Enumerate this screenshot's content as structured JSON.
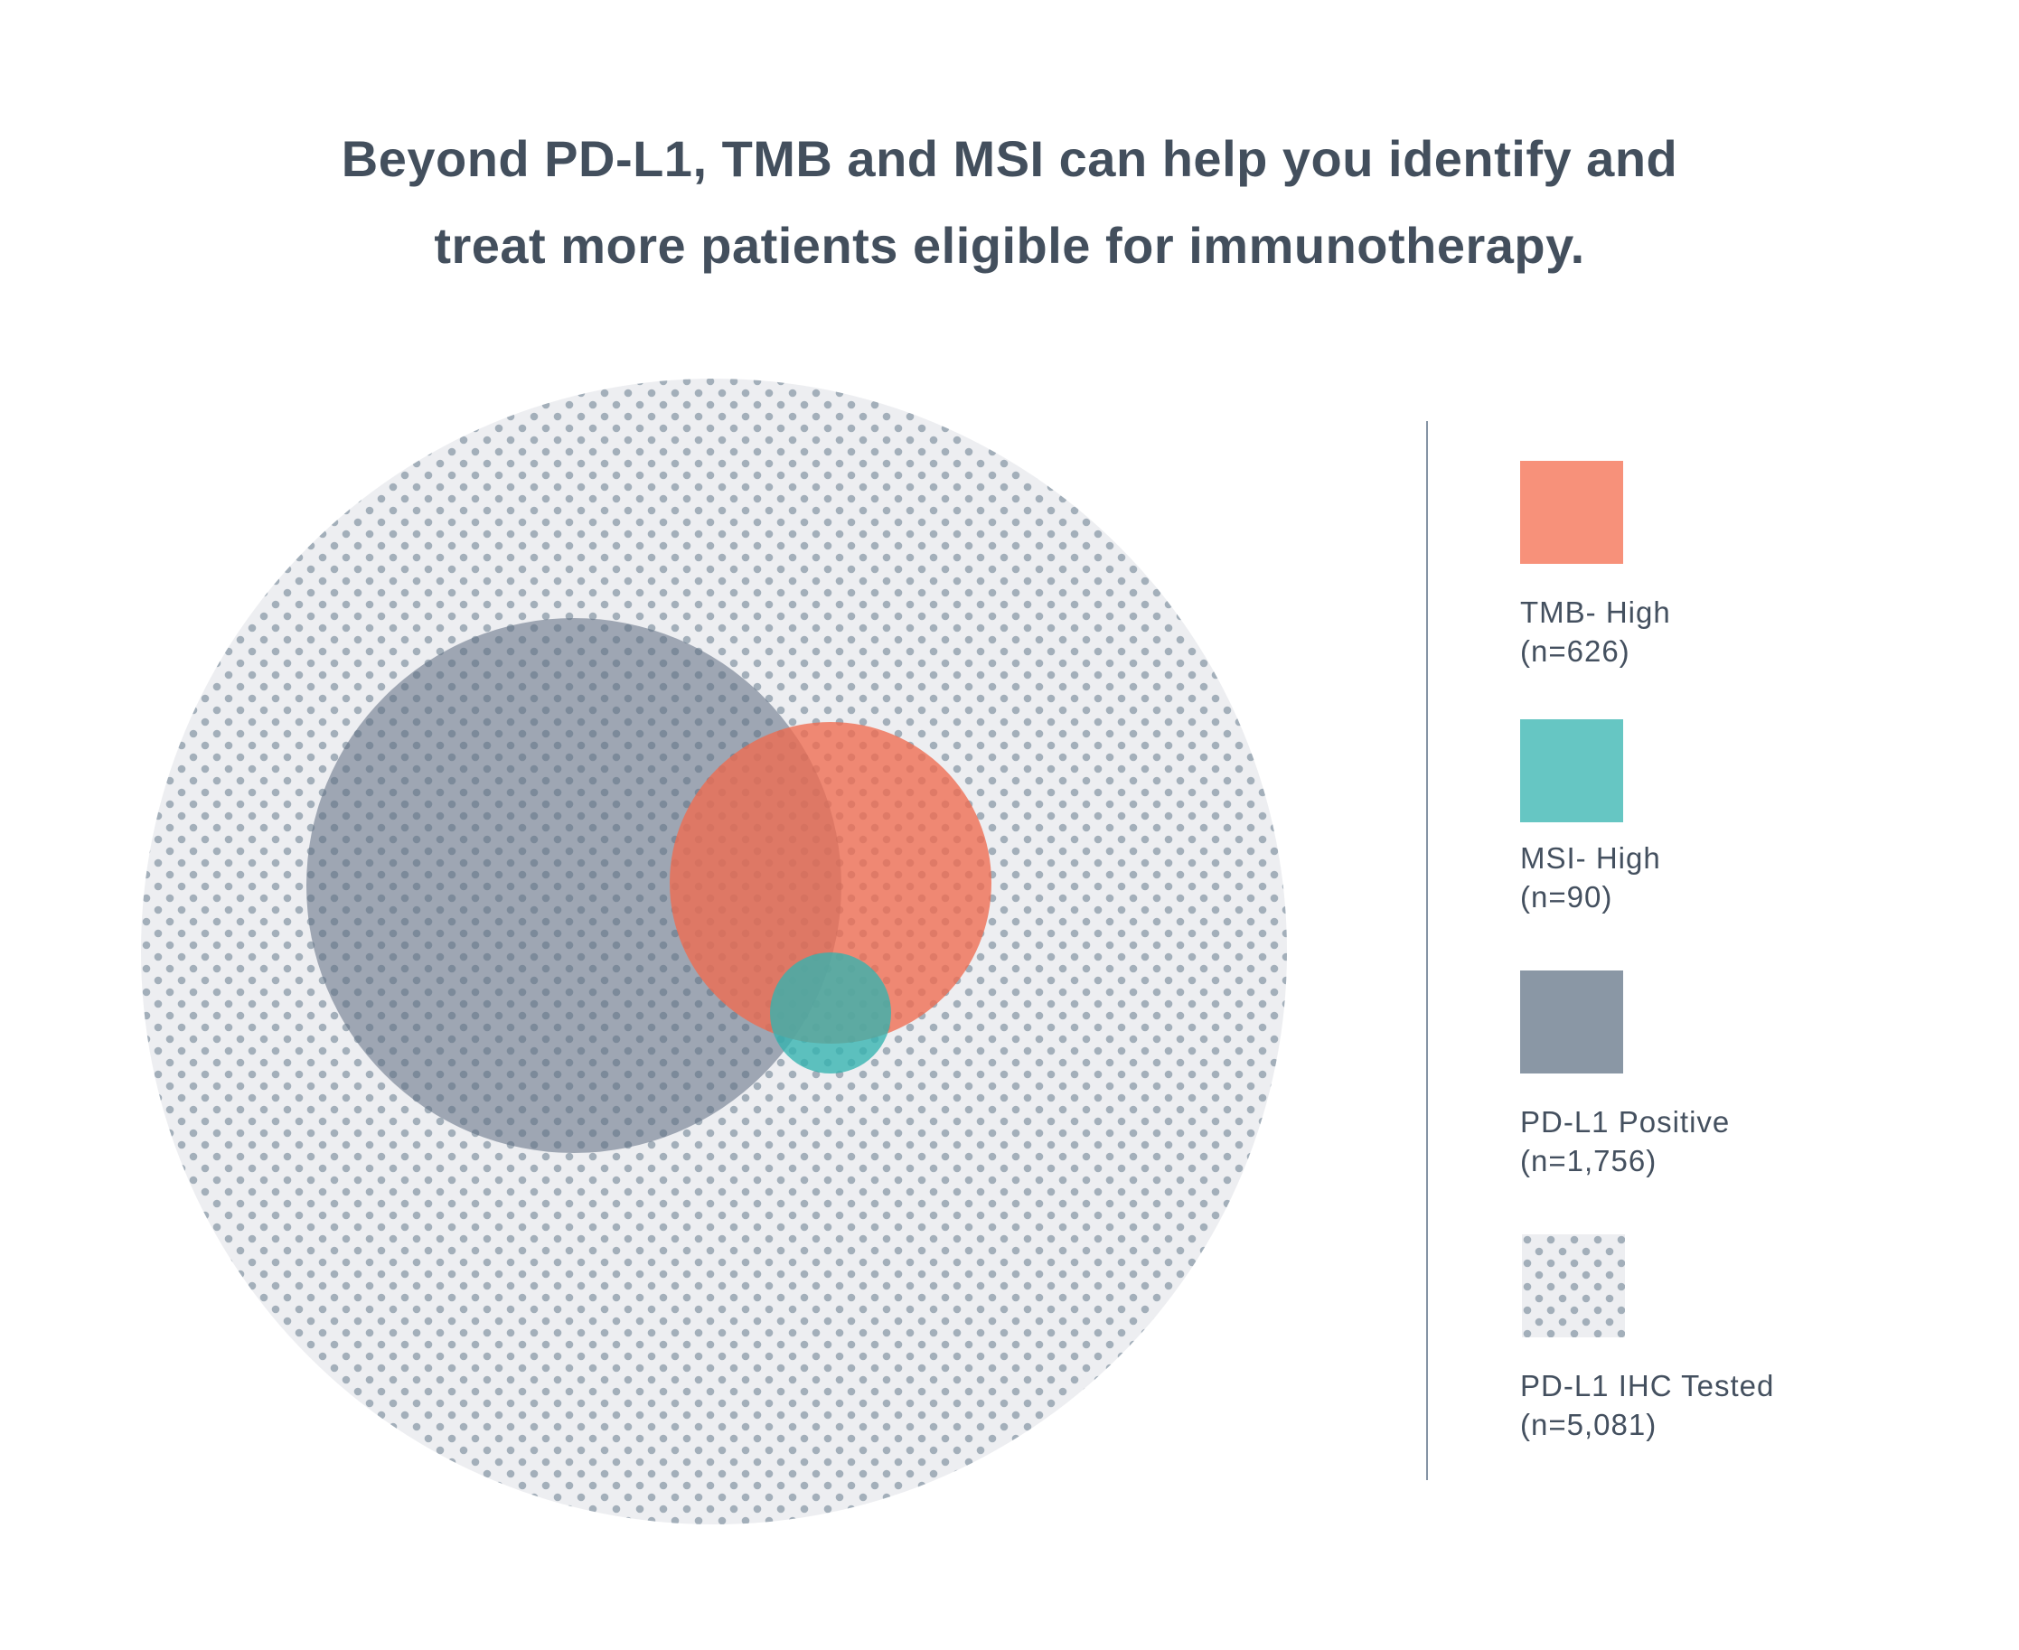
{
  "title": {
    "line1": "Beyond PD-L1, TMB and MSI can help you identify and",
    "line2": "treat more patients eligible for immunotherapy."
  },
  "colors": {
    "tmb_high": "#f7917a",
    "msi_high": "#66c6c3",
    "pdl1_positive": "#8a97a5",
    "tested_background": "#edeef1",
    "tested_dots": "#a3afba",
    "text": "#44505f"
  },
  "legend": [
    {
      "label": "TMB- High",
      "count": "(n=626)"
    },
    {
      "label": "MSI- High",
      "count": "(n=90)"
    },
    {
      "label": "PD-L1 Positive",
      "count": "(n=1,756)"
    },
    {
      "label": "PD-L1 IHC Tested",
      "count": "(n=5,081)"
    }
  ]
}
